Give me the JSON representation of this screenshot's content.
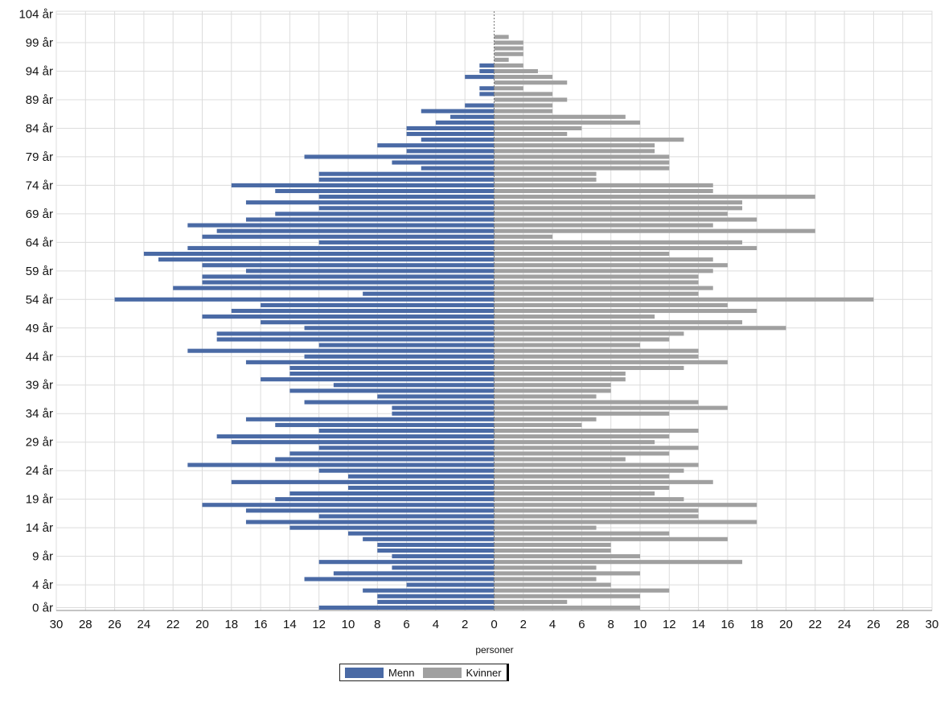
{
  "chart_data": {
    "type": "bar",
    "orientation": "horizontal",
    "layout": "population-pyramid",
    "xlabel": "personer",
    "xlim": [
      -30,
      30
    ],
    "x_ticks": [
      30,
      28,
      26,
      24,
      22,
      20,
      18,
      16,
      14,
      12,
      10,
      8,
      6,
      4,
      2,
      0,
      2,
      4,
      6,
      8,
      10,
      12,
      14,
      16,
      18,
      20,
      22,
      24,
      26,
      28,
      30
    ],
    "age_range": [
      0,
      104
    ],
    "y_ticks": [
      "0 år",
      "4 år",
      "9 år",
      "14 år",
      "19 år",
      "24 år",
      "29 år",
      "34 år",
      "39 år",
      "44 år",
      "49 år",
      "54 år",
      "59 år",
      "64 år",
      "69 år",
      "74 år",
      "79 år",
      "84 år",
      "89 år",
      "94 år",
      "99 år",
      "104 år"
    ],
    "grid": true,
    "legend_position": "bottom-center",
    "series": [
      {
        "name": "Menn",
        "color": "#4a6aa5",
        "side": "left",
        "values": [
          12,
          8,
          8,
          9,
          6,
          13,
          11,
          7,
          12,
          7,
          8,
          8,
          9,
          10,
          14,
          17,
          12,
          17,
          20,
          15,
          14,
          10,
          18,
          10,
          12,
          21,
          15,
          14,
          12,
          18,
          19,
          12,
          15,
          17,
          7,
          7,
          13,
          8,
          14,
          11,
          16,
          14,
          14,
          17,
          13,
          21,
          12,
          19,
          19,
          13,
          16,
          20,
          18,
          16,
          26,
          9,
          22,
          20,
          20,
          17,
          20,
          23,
          24,
          21,
          12,
          20,
          19,
          21,
          17,
          15,
          12,
          17,
          12,
          15,
          18,
          12,
          12,
          5,
          7,
          13,
          6,
          8,
          5,
          6,
          6,
          4,
          3,
          5,
          2,
          0,
          1,
          1,
          0,
          2,
          1,
          1,
          0,
          0,
          0,
          0,
          0,
          0,
          0,
          0,
          0
        ]
      },
      {
        "name": "Kvinner",
        "color": "#a0a0a0",
        "side": "right",
        "values": [
          10,
          5,
          10,
          12,
          8,
          7,
          10,
          7,
          17,
          10,
          8,
          8,
          16,
          12,
          7,
          18,
          14,
          14,
          18,
          13,
          11,
          12,
          15,
          12,
          13,
          14,
          9,
          12,
          14,
          11,
          12,
          14,
          6,
          7,
          12,
          16,
          14,
          7,
          8,
          8,
          9,
          9,
          13,
          16,
          14,
          14,
          10,
          12,
          13,
          20,
          17,
          11,
          18,
          16,
          26,
          14,
          15,
          14,
          14,
          15,
          16,
          15,
          12,
          18,
          17,
          4,
          22,
          15,
          18,
          16,
          17,
          17,
          22,
          15,
          15,
          7,
          7,
          12,
          12,
          12,
          11,
          11,
          13,
          5,
          6,
          10,
          9,
          4,
          4,
          5,
          4,
          2,
          5,
          4,
          3,
          2,
          1,
          2,
          2,
          2,
          1,
          0,
          0,
          0,
          0
        ]
      }
    ]
  }
}
